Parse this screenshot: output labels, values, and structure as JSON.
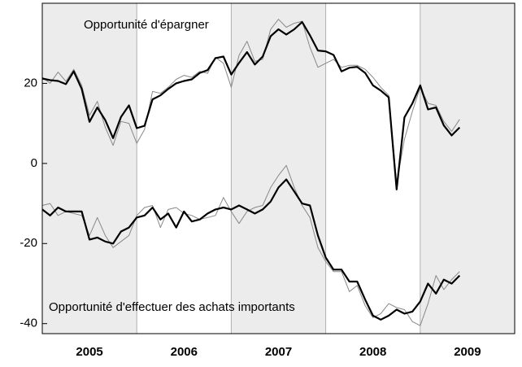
{
  "chart_data": {
    "type": "line",
    "annotations": [
      "Opportunité d'épargner",
      "Opportunité d'effectuer des achats importants"
    ],
    "x": [
      2005,
      2005.083,
      2005.167,
      2005.25,
      2005.333,
      2005.417,
      2005.5,
      2005.583,
      2005.667,
      2005.75,
      2005.833,
      2005.917,
      2006,
      2006.083,
      2006.167,
      2006.25,
      2006.333,
      2006.417,
      2006.5,
      2006.583,
      2006.667,
      2006.75,
      2006.833,
      2006.917,
      2007,
      2007.083,
      2007.167,
      2007.25,
      2007.333,
      2007.417,
      2007.5,
      2007.583,
      2007.667,
      2007.75,
      2007.833,
      2007.917,
      2008,
      2008.083,
      2008.167,
      2008.25,
      2008.333,
      2008.417,
      2008.5,
      2008.583,
      2008.667,
      2008.75,
      2008.833,
      2008.917,
      2009,
      2009.083,
      2009.167,
      2009.25,
      2009.333,
      2009.417
    ],
    "series": [
      {
        "color": "#888888",
        "width": 1,
        "values": [
          21.5,
          20,
          22.8,
          20.5,
          23.5,
          19.5,
          12,
          15.5,
          9,
          4.5,
          10.5,
          10,
          5,
          8.5,
          18,
          17.5,
          19,
          21,
          22,
          21.5,
          23,
          22.5,
          26.5,
          25,
          19,
          27,
          30.5,
          25.5,
          26,
          33.5,
          36,
          34,
          35,
          35.5,
          29,
          24,
          25,
          26,
          24,
          24.5,
          24.5,
          23.5,
          21.5,
          19,
          17,
          -5,
          6,
          13,
          19,
          15,
          14.5,
          10.5,
          8,
          11
        ]
      },
      {
        "color": "#000000",
        "width": 2.2,
        "values": [
          21.2,
          20.8,
          20.6,
          19.8,
          23,
          18.6,
          10.4,
          14,
          10.8,
          6.3,
          11.6,
          14.5,
          8.8,
          9.4,
          16,
          17,
          18.6,
          20,
          20.6,
          21,
          22.6,
          23.3,
          26.3,
          26.7,
          22.2,
          25.1,
          27.8,
          24.7,
          26.7,
          31.8,
          33.5,
          32.2,
          33.5,
          35.3,
          32,
          28.2,
          28,
          27.1,
          23,
          23.9,
          24.1,
          22.6,
          19.5,
          18.2,
          16.5,
          -6.5,
          11.5,
          15,
          19.5,
          13.5,
          14,
          9.5,
          7,
          9
        ]
      },
      {
        "color": "#888888",
        "width": 1,
        "values": [
          -10.5,
          -10,
          -13,
          -12,
          -12.5,
          -13,
          -18,
          -13.5,
          -18,
          -21,
          -19.5,
          -18,
          -13,
          -11,
          -10.5,
          -16,
          -11.5,
          -11,
          -12.5,
          -13,
          -14,
          -13.5,
          -13,
          -8.5,
          -12,
          -15,
          -12,
          -11,
          -10.5,
          -6,
          -3,
          -0.5,
          -6,
          -10.5,
          -13.5,
          -21,
          -24.5,
          -27,
          -27,
          -32,
          -30.5,
          -35.5,
          -38.5,
          -37.5,
          -35,
          -36,
          -36.5,
          -39.5,
          -40.5,
          -35,
          -28,
          -31.5,
          -29,
          -27
        ]
      },
      {
        "color": "#000000",
        "width": 2.2,
        "values": [
          -11.5,
          -13,
          -11,
          -12,
          -12,
          -12,
          -19,
          -18.5,
          -19.5,
          -20,
          -17,
          -16,
          -13.5,
          -13,
          -11,
          -14,
          -12.5,
          -16,
          -12,
          -14.5,
          -14,
          -12.5,
          -11.5,
          -11,
          -11.5,
          -10.5,
          -11.5,
          -12.5,
          -11.5,
          -9.5,
          -6,
          -4,
          -7,
          -10,
          -10.5,
          -18,
          -23.5,
          -26.5,
          -26.5,
          -29.5,
          -29.5,
          -34,
          -38,
          -39,
          -38,
          -36.5,
          -37.5,
          -37,
          -34.5,
          -30,
          -32.5,
          -29,
          -30,
          -28
        ]
      }
    ],
    "xlim": [
      2005,
      2010
    ],
    "xticks": [
      {
        "value": 2005,
        "label": "2005"
      },
      {
        "value": 2006,
        "label": "2006"
      },
      {
        "value": 2007,
        "label": "2007"
      },
      {
        "value": 2008,
        "label": "2008"
      },
      {
        "value": 2009,
        "label": "2009"
      }
    ],
    "ylim": [
      -42.5,
      40
    ],
    "yticks": [
      -40,
      -20,
      0,
      20
    ],
    "band_color": "#ececec"
  }
}
